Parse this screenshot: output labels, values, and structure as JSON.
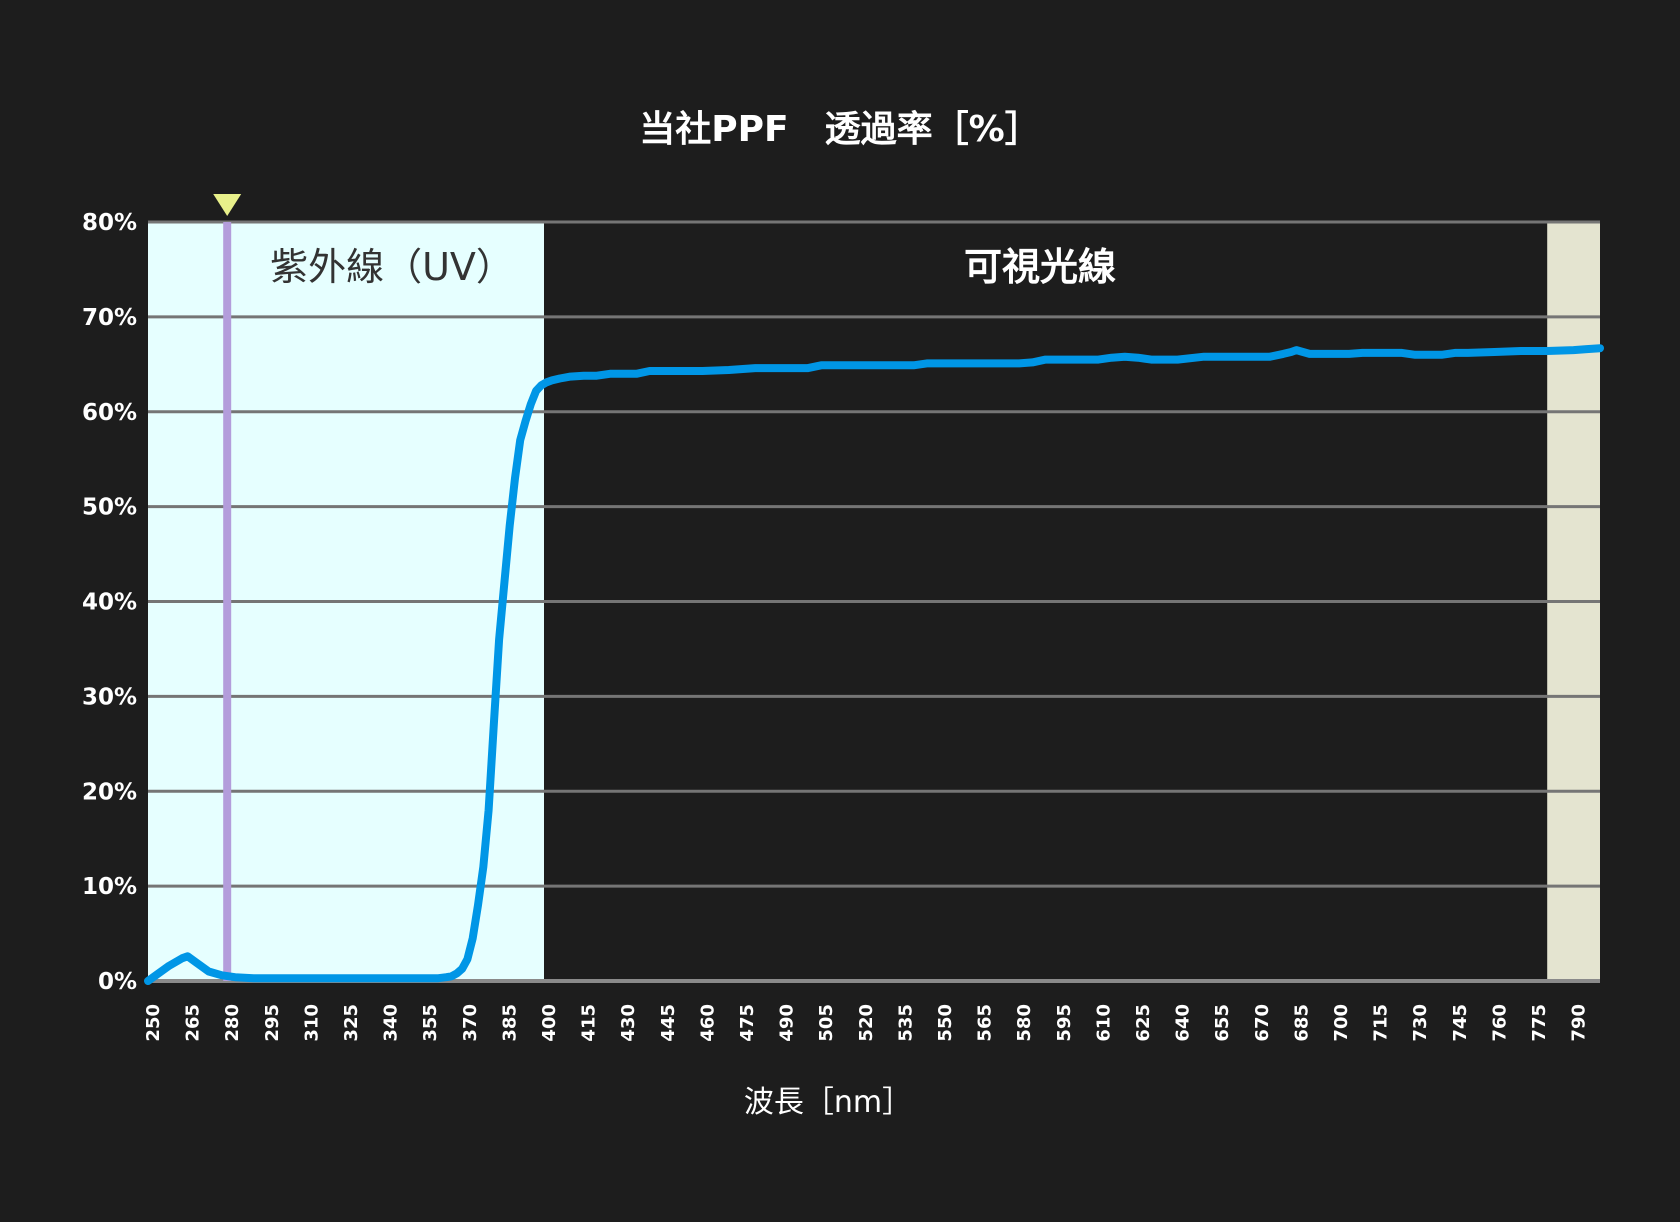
{
  "chart_data": {
    "type": "line",
    "title": "当社PPF　透過率［%］",
    "xlabel": "波長［nm］",
    "ylabel": "",
    "xlim": [
      250,
      800
    ],
    "ylim": [
      0,
      80
    ],
    "y_ticks": [
      "0%",
      "10%",
      "20%",
      "30%",
      "40%",
      "50%",
      "60%",
      "70%",
      "80%"
    ],
    "x_ticks": [
      "250",
      "265",
      "280",
      "295",
      "310",
      "325",
      "340",
      "355",
      "370",
      "385",
      "400",
      "415",
      "430",
      "445",
      "460",
      "475",
      "490",
      "505",
      "520",
      "535",
      "550",
      "565",
      "580",
      "595",
      "610",
      "625",
      "640",
      "655",
      "670",
      "685",
      "700",
      "715",
      "730",
      "745",
      "760",
      "775",
      "790"
    ],
    "grid": true,
    "regions": [
      {
        "name": "紫外線（UV）",
        "x_start": 250,
        "x_end": 400,
        "color": "#e6ffff"
      },
      {
        "name": "可視光線",
        "x_start": 400,
        "x_end": 780,
        "color": "#1d1d1d"
      },
      {
        "name": "",
        "x_start": 780,
        "x_end": 800,
        "color": "#e4e4d0"
      }
    ],
    "marker": {
      "x": 280,
      "line_color": "#b39ddb",
      "triangle_color": "#e8f08a"
    },
    "series": [
      {
        "color": "#0096e6",
        "x": [
          250,
          253,
          258,
          263,
          265,
          268,
          273,
          278,
          283,
          290,
          300,
          320,
          340,
          355,
          360,
          363,
          365,
          367,
          369,
          371,
          373,
          375,
          377,
          379,
          381,
          383,
          385,
          387,
          389,
          391,
          393,
          395,
          397,
          399,
          401,
          403,
          406,
          410,
          415,
          420,
          425,
          430,
          435,
          440,
          445,
          450,
          455,
          460,
          470,
          480,
          485,
          490,
          500,
          505,
          510,
          520,
          530,
          540,
          545,
          550,
          560,
          570,
          580,
          585,
          590,
          600,
          605,
          610,
          615,
          620,
          625,
          630,
          635,
          640,
          650,
          660,
          665,
          670,
          675,
          680,
          683,
          685,
          690,
          700,
          705,
          710,
          720,
          725,
          730,
          740,
          745,
          750,
          760,
          770,
          780,
          790,
          795,
          800
        ],
        "y": [
          0,
          0.6,
          1.6,
          2.4,
          2.6,
          2.0,
          1.0,
          0.6,
          0.4,
          0.3,
          0.3,
          0.3,
          0.3,
          0.3,
          0.3,
          0.4,
          0.5,
          0.8,
          1.3,
          2.3,
          4.5,
          8,
          12,
          18,
          27,
          36,
          42,
          48,
          53,
          57,
          59,
          60.8,
          62.2,
          62.8,
          63.1,
          63.3,
          63.5,
          63.7,
          63.8,
          63.8,
          64.0,
          64.0,
          64.0,
          64.3,
          64.3,
          64.3,
          64.3,
          64.3,
          64.4,
          64.6,
          64.6,
          64.6,
          64.6,
          64.9,
          64.9,
          64.9,
          64.9,
          64.9,
          65.1,
          65.1,
          65.1,
          65.1,
          65.1,
          65.2,
          65.5,
          65.5,
          65.5,
          65.5,
          65.7,
          65.8,
          65.7,
          65.5,
          65.5,
          65.5,
          65.8,
          65.8,
          65.8,
          65.8,
          65.8,
          66.1,
          66.3,
          66.5,
          66.1,
          66.1,
          66.1,
          66.2,
          66.2,
          66.2,
          66.0,
          66.0,
          66.2,
          66.2,
          66.3,
          66.4,
          66.4,
          66.5,
          66.6,
          66.7
        ]
      }
    ]
  }
}
